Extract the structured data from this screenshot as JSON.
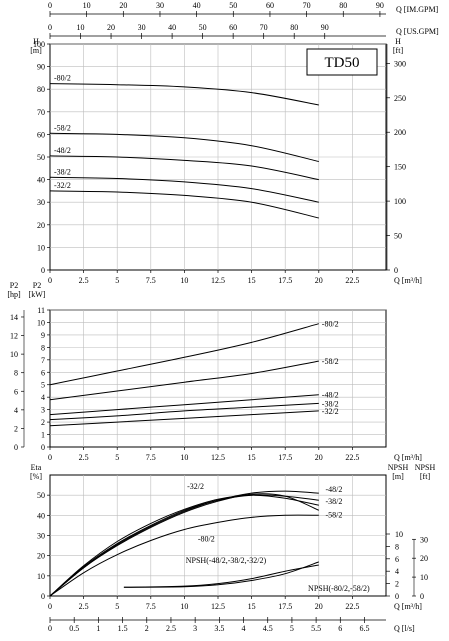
{
  "model_label": "TD50",
  "axes_labels": {
    "q_imp_gpm": "Q [IM.GPM]",
    "q_us_gpm": "Q [US.GPM]",
    "h_m": "H\n[m]",
    "h_ft": "H\n[ft]",
    "p2_hp": "P2\n[hp]",
    "p2_kw": "P2\n[kW]",
    "eta": "Eta\n[%]",
    "npsh_m": "NPSH\n[m]",
    "npsh_ft": "NPSH\n[ft]",
    "q_m3h": "Q [m³/h]",
    "q_ls": "Q [l/s]"
  },
  "chart_data": [
    {
      "type": "line",
      "title": "",
      "xlabel": "Q [m³/h]",
      "ylabel": "H [m]",
      "xlim": [
        0,
        25
      ],
      "ylim": [
        0,
        100
      ],
      "x_ticks": [
        0,
        2.5,
        5,
        7.5,
        10,
        12.5,
        15,
        17.5,
        20,
        22.5
      ],
      "y_ticks": [
        0,
        10,
        20,
        30,
        40,
        50,
        60,
        70,
        80,
        90,
        100
      ],
      "secondary_y": {
        "label": "H [ft]",
        "ticks": [
          0,
          50,
          100,
          150,
          200,
          250,
          300
        ],
        "scale_per_m": 3.2808
      },
      "top_axis_imp": {
        "label": "Q [IM.GPM]",
        "ticks": [
          0,
          10,
          20,
          30,
          40,
          50,
          60,
          70,
          80,
          90
        ],
        "per_m3h": 3.6662
      },
      "top_axis_us": {
        "label": "Q [US.GPM]",
        "ticks": [
          0,
          10,
          20,
          30,
          40,
          50,
          60,
          70,
          80,
          90
        ],
        "per_m3h": 4.4029
      },
      "grid": true,
      "series": [
        {
          "name": "-80/2",
          "x": [
            0,
            5,
            10,
            15,
            20
          ],
          "values": [
            82.5,
            82,
            81,
            78.5,
            73
          ]
        },
        {
          "name": "-58/2",
          "x": [
            0,
            5,
            10,
            15,
            20
          ],
          "values": [
            60.5,
            60,
            58.5,
            55,
            48
          ]
        },
        {
          "name": "-48/2",
          "x": [
            0,
            5,
            10,
            15,
            20
          ],
          "values": [
            50.5,
            50,
            48.5,
            46,
            40
          ]
        },
        {
          "name": "-38/2",
          "x": [
            0,
            5,
            10,
            15,
            20
          ],
          "values": [
            41,
            40.5,
            39,
            36,
            30
          ]
        },
        {
          "name": "-32/2",
          "x": [
            0,
            5,
            10,
            15,
            20
          ],
          "values": [
            35,
            34.5,
            33,
            30,
            23
          ]
        }
      ]
    },
    {
      "type": "line",
      "title": "",
      "xlabel": "Q [m³/h]",
      "ylabel": "P2 [kW]",
      "xlim": [
        0,
        25
      ],
      "ylim": [
        0,
        11
      ],
      "x_ticks": [
        0,
        2.5,
        5,
        7.5,
        10,
        12.5,
        15,
        17.5,
        20,
        22.5
      ],
      "y_ticks": [
        0,
        1,
        2,
        3,
        4,
        5,
        6,
        7,
        8,
        9,
        10,
        11
      ],
      "secondary_y": {
        "label": "P2 [hp]",
        "ticks": [
          0,
          2,
          4,
          6,
          8,
          10,
          12,
          14
        ],
        "scale_per_kw": 1.341
      },
      "grid": true,
      "series": [
        {
          "name": "-80/2",
          "x": [
            0,
            5,
            10,
            15,
            20
          ],
          "values": [
            5.0,
            6.1,
            7.2,
            8.4,
            9.9
          ]
        },
        {
          "name": "-58/2",
          "x": [
            0,
            5,
            10,
            15,
            20
          ],
          "values": [
            3.8,
            4.5,
            5.2,
            5.9,
            6.9
          ]
        },
        {
          "name": "-48/2",
          "x": [
            0,
            5,
            10,
            15,
            20
          ],
          "values": [
            2.6,
            3.0,
            3.4,
            3.8,
            4.2
          ]
        },
        {
          "name": "-38/2",
          "x": [
            0,
            5,
            10,
            15,
            20
          ],
          "values": [
            2.2,
            2.5,
            2.9,
            3.2,
            3.5
          ]
        },
        {
          "name": "-32/2",
          "x": [
            0,
            5,
            10,
            15,
            20
          ],
          "values": [
            1.7,
            2.0,
            2.3,
            2.6,
            2.9
          ]
        }
      ]
    },
    {
      "type": "line",
      "title": "",
      "xlabel": "Q [m³/h]",
      "ylabel": "Eta [%]",
      "xlim": [
        0,
        25
      ],
      "ylim": [
        0,
        60
      ],
      "x_ticks": [
        0,
        2.5,
        5,
        7.5,
        10,
        12.5,
        15,
        17.5,
        20,
        22.5
      ],
      "y_ticks": [
        0,
        10,
        20,
        30,
        40,
        50
      ],
      "secondary_y_npsh_m": {
        "label": "NPSH [m]",
        "ticks": [
          0,
          2,
          4,
          6,
          8,
          10
        ]
      },
      "secondary_y_npsh_ft": {
        "label": "NPSH [ft]",
        "ticks": [
          0,
          10,
          20,
          30
        ]
      },
      "bottom_axis_ls": {
        "label": "Q [l/s]",
        "ticks": [
          0,
          0.5,
          1.0,
          1.5,
          2.0,
          2.5,
          3.0,
          3.5,
          4.0,
          4.5,
          5.0,
          5.5,
          6.0,
          6.5
        ]
      },
      "grid": true,
      "series": [
        {
          "name": "-32/2",
          "x": [
            0,
            2.5,
            5,
            7.5,
            10,
            12.5,
            15,
            17.5,
            20
          ],
          "values": [
            0,
            15,
            27,
            36,
            43,
            48,
            50,
            48.5,
            45
          ]
        },
        {
          "name": "-48/2",
          "x": [
            0,
            2.5,
            5,
            7.5,
            10,
            12.5,
            15,
            17.5,
            20
          ],
          "values": [
            0,
            14,
            25.5,
            34.5,
            42,
            47.5,
            51,
            52,
            51
          ]
        },
        {
          "name": "-38/2",
          "x": [
            0,
            2.5,
            5,
            7.5,
            10,
            12.5,
            15,
            17.5,
            20
          ],
          "values": [
            0,
            14.5,
            26,
            35,
            42.5,
            47.5,
            50,
            49.5,
            47.5
          ]
        },
        {
          "name": "-58/2",
          "x": [
            0,
            2.5,
            5,
            7.5,
            10,
            12.5,
            15,
            17.5,
            20
          ],
          "values": [
            0,
            14,
            25,
            34,
            41.5,
            47,
            50.5,
            49.5,
            42.5
          ]
        },
        {
          "name": "-80/2",
          "x": [
            0,
            2.5,
            5,
            7.5,
            10,
            12.5,
            15,
            17.5,
            20
          ],
          "values": [
            0,
            11.5,
            20.5,
            27.5,
            33,
            36.5,
            39,
            40,
            40
          ]
        },
        {
          "name": "NPSH(-48/2,-38/2,-32/2)",
          "x": [
            5.5,
            10,
            12.5,
            15,
            17.5,
            20
          ],
          "values": [
            1.4,
            1.5,
            1.8,
            2.5,
            3.6,
            5.5
          ]
        },
        {
          "name": "NPSH(-80/2,-58/2)",
          "x": [
            5.5,
            10,
            12.5,
            15,
            17.5,
            20
          ],
          "values": [
            1.4,
            1.6,
            2.0,
            2.8,
            4.0,
            5.0
          ]
        }
      ]
    }
  ]
}
